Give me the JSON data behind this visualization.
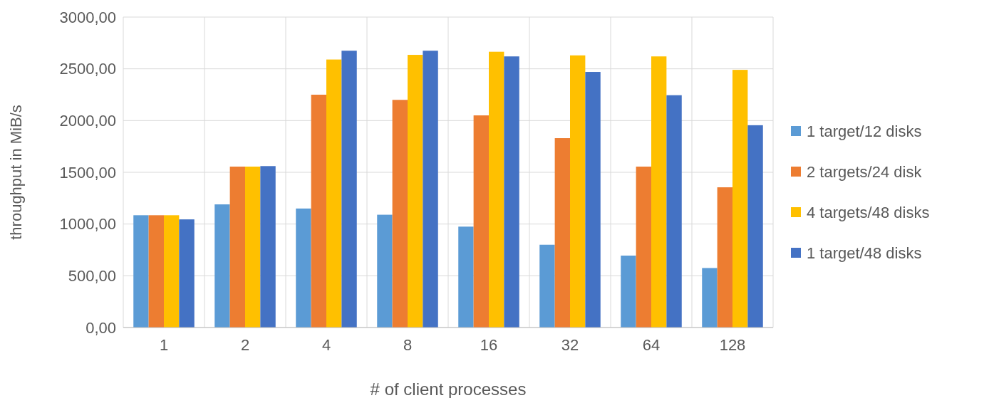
{
  "chart_data": {
    "type": "bar",
    "xlabel": "# of client processes",
    "ylabel": "throughput in MiB/s",
    "categories": [
      "1",
      "2",
      "4",
      "8",
      "16",
      "32",
      "64",
      "128"
    ],
    "series": [
      {
        "name": "1 target/12 disks",
        "color": "#5b9bd5",
        "values": [
          1085,
          1190,
          1150,
          1090,
          975,
          800,
          695,
          575
        ]
      },
      {
        "name": "2 targets/24 disk",
        "color": "#ed7d31",
        "values": [
          1085,
          1555,
          2250,
          2200,
          2050,
          1830,
          1555,
          1355
        ]
      },
      {
        "name": "4 targets/48 disks",
        "color": "#ffc000",
        "values": [
          1085,
          1555,
          2590,
          2635,
          2665,
          2630,
          2620,
          2490
        ]
      },
      {
        "name": "1 target/48 disks",
        "color": "#4472c4",
        "values": [
          1045,
          1560,
          2675,
          2675,
          2620,
          2470,
          2245,
          1955
        ]
      }
    ],
    "ylim": [
      0,
      3000
    ],
    "yticks": [
      {
        "value": 0,
        "label": "0,00"
      },
      {
        "value": 500,
        "label": "500,00"
      },
      {
        "value": 1000,
        "label": "1000,00"
      },
      {
        "value": 1500,
        "label": "1500,00"
      },
      {
        "value": 2000,
        "label": "2000,00"
      },
      {
        "value": 2500,
        "label": "2500,00"
      },
      {
        "value": 3000,
        "label": "3000,00"
      }
    ],
    "grid": true,
    "legend": "right"
  }
}
